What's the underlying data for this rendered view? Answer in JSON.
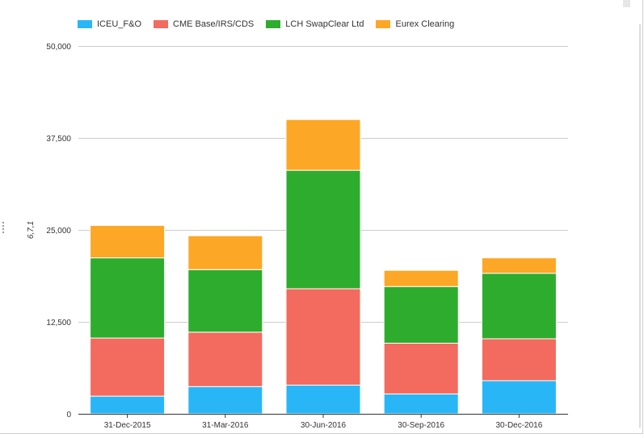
{
  "chart_data": {
    "type": "bar",
    "stacked": true,
    "categories": [
      "31-Dec-2015",
      "31-Mar-2016",
      "30-Jun-2016",
      "30-Sep-2016",
      "30-Dec-2016"
    ],
    "series": [
      {
        "name": "ICEU_F&O",
        "color": "#29b6f6",
        "values": [
          2400,
          3700,
          3900,
          2700,
          4500
        ]
      },
      {
        "name": "CME Base/IRS/CDS",
        "color": "#f26b5e",
        "values": [
          7900,
          7400,
          13100,
          6900,
          5700
        ]
      },
      {
        "name": "LCH SwapClear Ltd",
        "color": "#2eac2e",
        "values": [
          10900,
          8500,
          16100,
          7700,
          8900
        ]
      },
      {
        "name": "Eurex Clearing",
        "color": "#fca726",
        "values": [
          4400,
          4600,
          6900,
          2200,
          2100
        ]
      }
    ],
    "ylabel": "6,7,1",
    "ylim": [
      0,
      50000
    ],
    "yticks": [
      "0",
      "12,500",
      "25,000",
      "37,500",
      "50,000"
    ],
    "ytick_values": [
      0,
      12500,
      25000,
      37500,
      50000
    ],
    "grid": true,
    "legend_position": "top-left"
  }
}
